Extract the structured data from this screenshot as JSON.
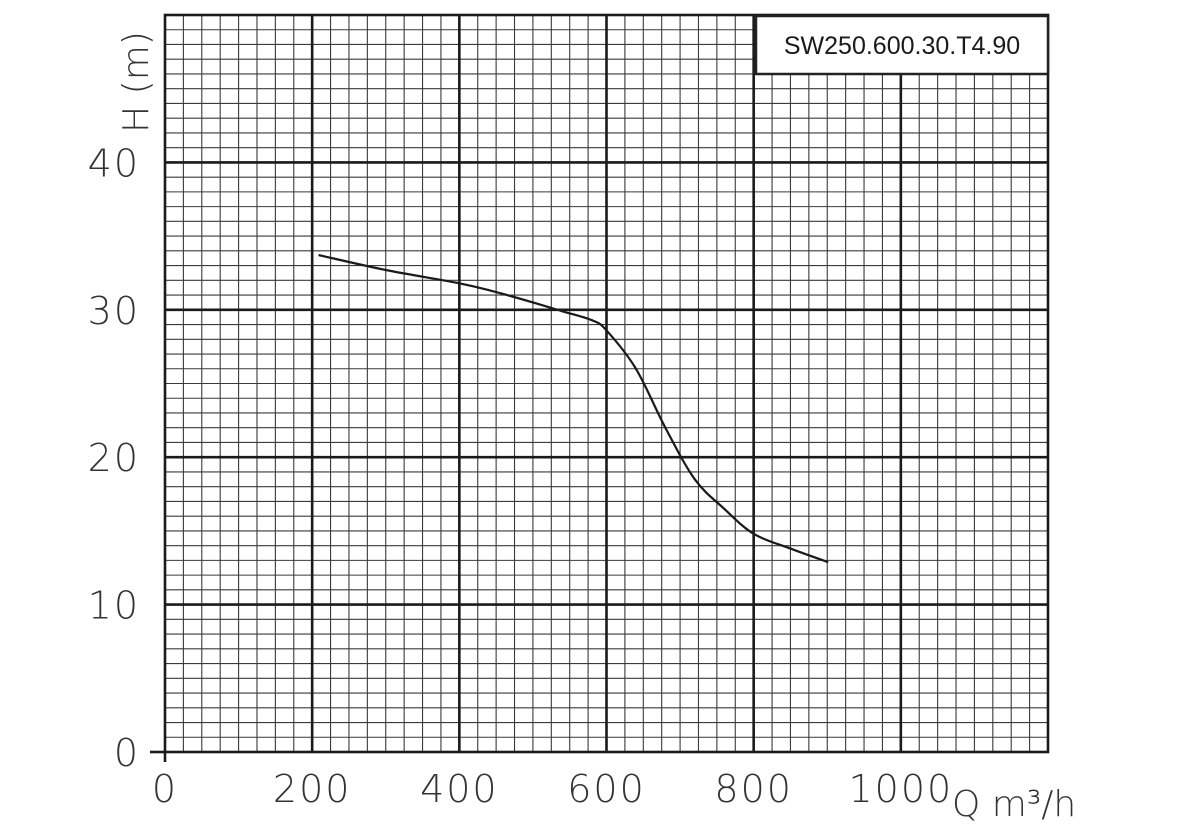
{
  "chart_data": {
    "type": "line",
    "title": "SW250.600.30.T4.90",
    "xlabel": "Q m³/h",
    "ylabel": "H (m)",
    "xlim": [
      0,
      1200
    ],
    "ylim": [
      0,
      50
    ],
    "x_ticks": [
      0,
      200,
      400,
      600,
      800,
      1000
    ],
    "y_ticks": [
      0,
      10,
      20,
      30,
      40
    ],
    "grid": true,
    "series": [
      {
        "x": [
          210,
          300,
          400,
          450,
          500,
          540,
          580,
          600,
          640,
          680,
          720,
          760,
          800,
          850,
          900
        ],
        "y": [
          33.7,
          32.7,
          31.8,
          31.2,
          30.5,
          29.9,
          29.3,
          28.6,
          26.0,
          22.0,
          18.5,
          16.5,
          14.8,
          13.8,
          12.9
        ]
      }
    ]
  }
}
